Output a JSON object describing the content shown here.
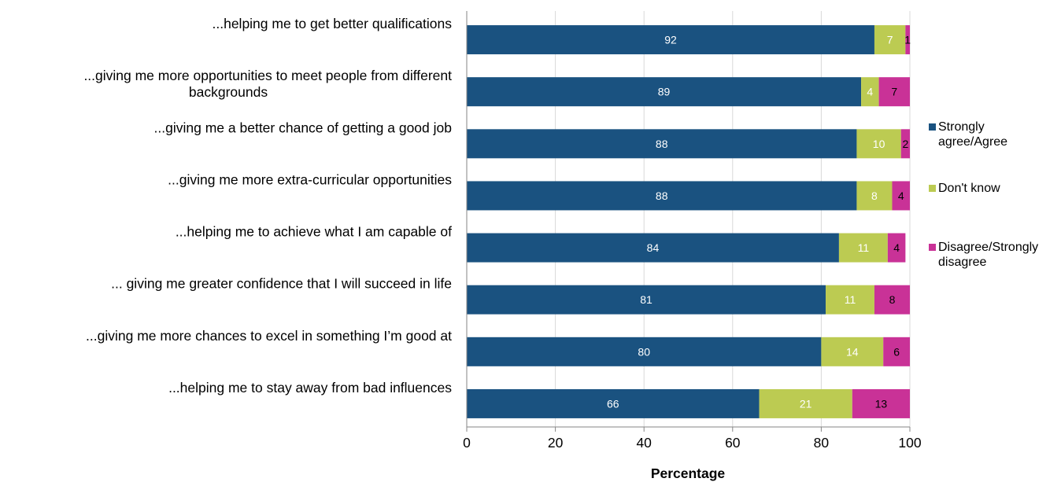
{
  "chart_data": {
    "type": "bar",
    "orientation": "horizontal",
    "stacked": true,
    "title": "",
    "xlabel": "Percentage",
    "ylabel": "",
    "xlim": [
      0,
      100
    ],
    "xticks": [
      0,
      20,
      40,
      60,
      80,
      100
    ],
    "grid": true,
    "legend_position": "right",
    "categories": [
      [
        "...helping me to get better qualifications"
      ],
      [
        "...giving me more opportunities to meet people from different",
        "backgrounds"
      ],
      [
        "...giving me a better chance of getting a good job"
      ],
      [
        "...giving me more extra-curricular  opportunities"
      ],
      [
        "...helping me to achieve what I am capable of"
      ],
      [
        "... giving me greater confidence that I will succeed in life"
      ],
      [
        "...giving me more chances to excel in something I’m good at"
      ],
      [
        "...helping me to stay away  from bad influences"
      ]
    ],
    "series": [
      {
        "name": [
          "Strongly",
          "agree/Agree"
        ],
        "color": "#1a5280",
        "label_color": "#ffffff",
        "values": [
          92,
          89,
          88,
          88,
          84,
          81,
          80,
          66
        ]
      },
      {
        "name": [
          "Don't know"
        ],
        "color": "#bccb52",
        "label_color": "#ffffff",
        "values": [
          7,
          4,
          10,
          8,
          11,
          11,
          14,
          21
        ]
      },
      {
        "name": [
          "Disagree/Strongly",
          "disagree"
        ],
        "color": "#c93297",
        "label_color": "#000000",
        "values": [
          1,
          7,
          2,
          4,
          4,
          8,
          6,
          13
        ]
      }
    ]
  }
}
